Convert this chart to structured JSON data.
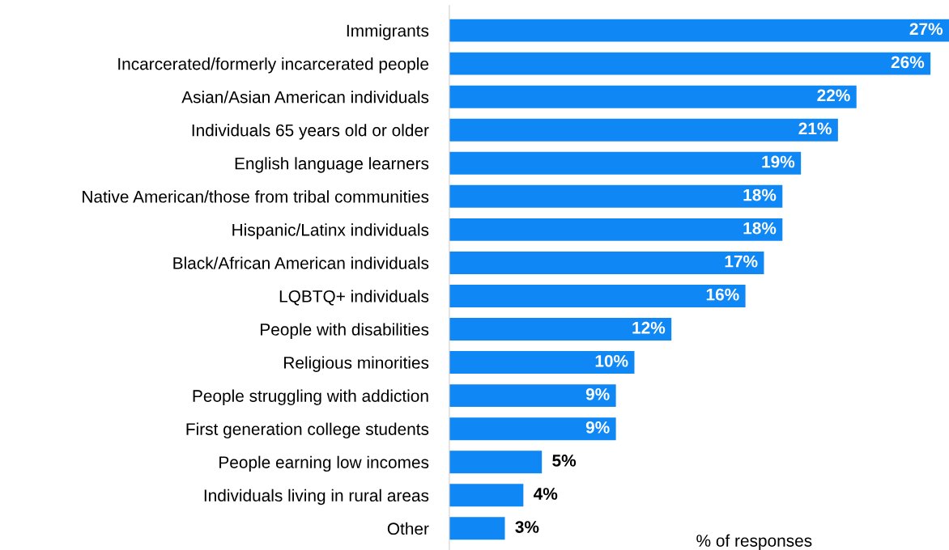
{
  "chart_data": {
    "type": "bar",
    "orientation": "horizontal",
    "xlabel": "% of responses",
    "categories": [
      "Immigrants",
      "Incarcerated/formerly incarcerated people",
      "Asian/Asian American individuals",
      "Individuals 65 years old or older",
      "English language learners",
      "Native American/those from tribal communities",
      "Hispanic/Latinx individuals",
      "Black/African American individuals",
      "LQBTQ+ individuals",
      "People with disabilities",
      "Religious minorities",
      "People struggling with addiction",
      "First generation college students",
      "People earning low incomes",
      "Individuals living in rural areas",
      "Other"
    ],
    "values": [
      27,
      26,
      22,
      21,
      19,
      18,
      18,
      17,
      16,
      12,
      10,
      9,
      9,
      5,
      4,
      3
    ],
    "value_labels": [
      "27%",
      "26%",
      "22%",
      "21%",
      "19%",
      "18%",
      "18%",
      "17%",
      "16%",
      "12%",
      "10%",
      "9%",
      "9%",
      "5%",
      "4%",
      "3%"
    ],
    "color": "#0f87f5",
    "xlim": [
      0,
      27
    ],
    "tick_labels": "y",
    "grid": false,
    "legend": false
  }
}
